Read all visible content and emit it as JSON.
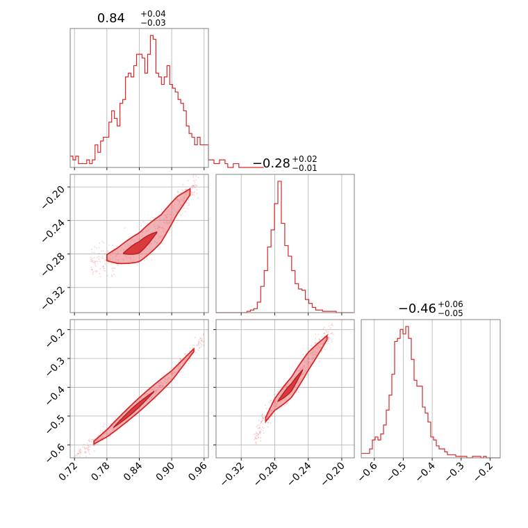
{
  "chart_data": {
    "type": "corner",
    "color": "#d62728",
    "grid": true,
    "parameters": [
      {
        "title": {
          "median": "0.84",
          "plus": "+0.04",
          "minus": "−0.03"
        },
        "range": [
          0.712,
          0.968
        ],
        "ticks": [
          {
            "value": 0.72,
            "label": "0.72"
          },
          {
            "value": 0.78,
            "label": "0.78"
          },
          {
            "value": 0.84,
            "label": "0.84"
          },
          {
            "value": 0.9,
            "label": "0.90"
          },
          {
            "value": 0.96,
            "label": "0.96"
          }
        ],
        "histogram": {
          "x_start": 0.712,
          "bin_width": 0.00512,
          "counts": [
            3,
            2,
            3,
            1,
            1,
            1,
            2,
            1,
            2,
            6,
            4,
            7,
            8,
            8,
            12,
            15,
            13,
            11,
            17,
            18,
            24,
            25,
            24,
            27,
            30,
            30,
            29,
            25,
            30,
            35,
            34,
            25,
            24,
            22,
            24,
            27,
            22,
            21,
            20,
            18,
            17,
            15,
            11,
            9,
            8,
            6,
            8,
            6,
            6,
            6,
            2,
            2,
            1,
            1,
            2,
            2,
            1,
            0,
            0,
            1,
            1,
            0,
            0,
            0,
            0,
            0,
            0,
            0,
            0,
            0
          ]
        }
      },
      {
        "title": {
          "median": "−0.28",
          "plus": "+0.02",
          "minus": "−0.01"
        },
        "range": [
          -0.35,
          -0.185
        ],
        "ticks": [
          {
            "value": -0.32,
            "label": "−0.32"
          },
          {
            "value": -0.28,
            "label": "−0.28"
          },
          {
            "value": -0.24,
            "label": "−0.24"
          },
          {
            "value": -0.2,
            "label": "−0.20"
          }
        ],
        "histogram": {
          "x_start": -0.35,
          "bin_width": 0.0041,
          "counts": [
            0,
            0,
            0,
            0,
            0,
            0,
            0,
            0,
            0,
            1,
            2,
            3,
            8,
            20,
            32,
            50,
            63,
            83,
            100,
            68,
            51,
            43,
            32,
            22,
            18,
            17,
            10,
            7,
            4,
            2,
            2,
            1,
            1,
            1,
            1,
            0,
            0,
            0,
            0,
            0
          ]
        }
      },
      {
        "title": {
          "median": "−0.46",
          "plus": "+0.06",
          "minus": "−0.05"
        },
        "range": [
          -0.645,
          -0.165
        ],
        "ticks": [
          {
            "value": -0.6,
            "label": "−0.6"
          },
          {
            "value": -0.5,
            "label": "−0.5"
          },
          {
            "value": -0.4,
            "label": "−0.4"
          },
          {
            "value": -0.3,
            "label": "−0.3"
          },
          {
            "value": -0.2,
            "label": "−0.2"
          }
        ],
        "histogram": {
          "x_start": -0.645,
          "bin_width": 0.0096,
          "counts": [
            3,
            3,
            3,
            6,
            12,
            14,
            12,
            16,
            22,
            32,
            42,
            56,
            78,
            80,
            86,
            83,
            88,
            80,
            66,
            52,
            48,
            48,
            34,
            30,
            24,
            14,
            12,
            8,
            6,
            6,
            4,
            2,
            2,
            2,
            1,
            1,
            1,
            1,
            0,
            0,
            1,
            1,
            1,
            0,
            1,
            0,
            0,
            0,
            0,
            0
          ]
        }
      }
    ],
    "pairs": [
      {
        "row": 1,
        "col": 0,
        "relation": [
          [
            0.75,
            -0.288
          ],
          [
            0.8,
            -0.282
          ],
          [
            0.84,
            -0.272
          ],
          [
            0.88,
            -0.25
          ],
          [
            0.91,
            -0.222
          ],
          [
            0.95,
            -0.195
          ]
        ],
        "spread": 0.009
      },
      {
        "row": 2,
        "col": 0,
        "relation": [
          [
            0.72,
            -0.64
          ],
          [
            0.78,
            -0.56
          ],
          [
            0.84,
            -0.46
          ],
          [
            0.9,
            -0.36
          ],
          [
            0.96,
            -0.23
          ]
        ],
        "spread": 0.012
      },
      {
        "row": 2,
        "col": 1,
        "relation": [
          [
            -0.305,
            -0.58
          ],
          [
            -0.28,
            -0.46
          ],
          [
            -0.26,
            -0.4
          ],
          [
            -0.24,
            -0.31
          ],
          [
            -0.21,
            -0.2
          ]
        ],
        "spread": 0.018
      }
    ]
  }
}
